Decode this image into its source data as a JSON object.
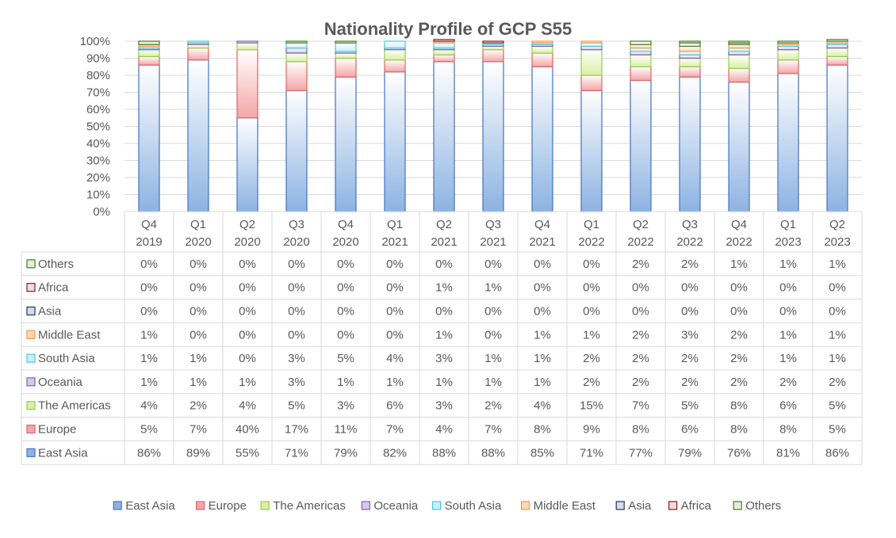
{
  "chart_data": {
    "type": "bar",
    "stacked": true,
    "percent": true,
    "title": "Nationality Profile of GCP S55",
    "categories": [
      [
        "Q4",
        "2019"
      ],
      [
        "Q1",
        "2020"
      ],
      [
        "Q2",
        "2020"
      ],
      [
        "Q3",
        "2020"
      ],
      [
        "Q4",
        "2020"
      ],
      [
        "Q1",
        "2021"
      ],
      [
        "Q2",
        "2021"
      ],
      [
        "Q3",
        "2021"
      ],
      [
        "Q4",
        "2021"
      ],
      [
        "Q1",
        "2022"
      ],
      [
        "Q2",
        "2022"
      ],
      [
        "Q3",
        "2022"
      ],
      [
        "Q4",
        "2022"
      ],
      [
        "Q1",
        "2023"
      ],
      [
        "Q2",
        "2023"
      ]
    ],
    "y_ticks": [
      "0%",
      "10%",
      "20%",
      "30%",
      "40%",
      "50%",
      "60%",
      "70%",
      "80%",
      "90%",
      "100%"
    ],
    "ylim": [
      0,
      100
    ],
    "legend_position": "bottom",
    "data_table": true,
    "series": [
      {
        "name": "East Asia",
        "color": "#8db3e2",
        "stroke": "#4472c4",
        "values": [
          86,
          89,
          55,
          71,
          79,
          82,
          88,
          88,
          85,
          71,
          77,
          79,
          76,
          81,
          86
        ]
      },
      {
        "name": "Europe",
        "color": "#f4a6a6",
        "stroke": "#e06666",
        "values": [
          5,
          7,
          40,
          17,
          11,
          7,
          4,
          7,
          8,
          9,
          8,
          6,
          8,
          8,
          5
        ]
      },
      {
        "name": "The Americas",
        "color": "#d9f0a3",
        "stroke": "#92d050",
        "values": [
          4,
          2,
          4,
          5,
          3,
          6,
          3,
          2,
          4,
          15,
          7,
          5,
          8,
          6,
          5
        ]
      },
      {
        "name": "Oceania",
        "color": "#d9c7ee",
        "stroke": "#8064a2",
        "values": [
          1,
          1,
          1,
          3,
          1,
          1,
          1,
          1,
          1,
          2,
          2,
          2,
          2,
          2,
          2
        ]
      },
      {
        "name": "South Asia",
        "color": "#c9f0f8",
        "stroke": "#4bc8e0",
        "values": [
          1,
          1,
          0,
          3,
          5,
          4,
          3,
          1,
          1,
          2,
          2,
          2,
          2,
          1,
          1
        ]
      },
      {
        "name": "Middle East",
        "color": "#fdd9b5",
        "stroke": "#f79646",
        "values": [
          1,
          0,
          0,
          0,
          0,
          0,
          1,
          0,
          1,
          1,
          2,
          3,
          2,
          1,
          1
        ]
      },
      {
        "name": "Asia",
        "color": "#d6dce5",
        "stroke": "#1f3864",
        "values": [
          0,
          0,
          0,
          0,
          0,
          0,
          0,
          0,
          0,
          0,
          0,
          0,
          0,
          0,
          0
        ]
      },
      {
        "name": "Africa",
        "color": "#f2dcdb",
        "stroke": "#7f1f1f",
        "values": [
          0,
          0,
          0,
          0,
          0,
          0,
          1,
          1,
          0,
          0,
          0,
          0,
          0,
          0,
          0
        ]
      },
      {
        "name": "Others",
        "color": "#e2efd9",
        "stroke": "#4e7a28",
        "values": [
          0,
          0,
          0,
          0,
          0,
          0,
          0,
          0,
          0,
          0,
          2,
          2,
          1,
          1,
          1
        ]
      }
    ],
    "table_row_order": [
      "Others",
      "Africa",
      "Asia",
      "Middle East",
      "South Asia",
      "Oceania",
      "The Americas",
      "Europe",
      "East Asia"
    ],
    "table_values": {
      "Others": [
        "0%",
        "0%",
        "0%",
        "0%",
        "0%",
        "0%",
        "0%",
        "0%",
        "0%",
        "0%",
        "2%",
        "2%",
        "1%",
        "1%",
        "1%"
      ],
      "Africa": [
        "0%",
        "0%",
        "0%",
        "0%",
        "0%",
        "0%",
        "1%",
        "1%",
        "0%",
        "0%",
        "0%",
        "0%",
        "0%",
        "0%",
        "0%"
      ],
      "Asia": [
        "0%",
        "0%",
        "0%",
        "0%",
        "0%",
        "0%",
        "0%",
        "0%",
        "0%",
        "0%",
        "0%",
        "0%",
        "0%",
        "0%",
        "0%"
      ],
      "Middle East": [
        "1%",
        "0%",
        "0%",
        "0%",
        "0%",
        "0%",
        "1%",
        "0%",
        "1%",
        "1%",
        "2%",
        "3%",
        "2%",
        "1%",
        "1%"
      ],
      "South Asia": [
        "1%",
        "1%",
        "0%",
        "3%",
        "5%",
        "4%",
        "3%",
        "1%",
        "1%",
        "2%",
        "2%",
        "2%",
        "2%",
        "1%",
        "1%"
      ],
      "Oceania": [
        "1%",
        "1%",
        "1%",
        "3%",
        "1%",
        "1%",
        "1%",
        "1%",
        "1%",
        "2%",
        "2%",
        "2%",
        "2%",
        "2%",
        "2%"
      ],
      "The Americas": [
        "4%",
        "2%",
        "4%",
        "5%",
        "3%",
        "6%",
        "3%",
        "2%",
        "4%",
        "15%",
        "7%",
        "5%",
        "8%",
        "6%",
        "5%"
      ],
      "Europe": [
        "5%",
        "7%",
        "40%",
        "17%",
        "11%",
        "7%",
        "4%",
        "7%",
        "8%",
        "9%",
        "8%",
        "6%",
        "8%",
        "8%",
        "5%"
      ],
      "East Asia": [
        "86%",
        "89%",
        "55%",
        "71%",
        "79%",
        "82%",
        "88%",
        "88%",
        "85%",
        "71%",
        "77%",
        "79%",
        "76%",
        "81%",
        "86%"
      ]
    }
  }
}
